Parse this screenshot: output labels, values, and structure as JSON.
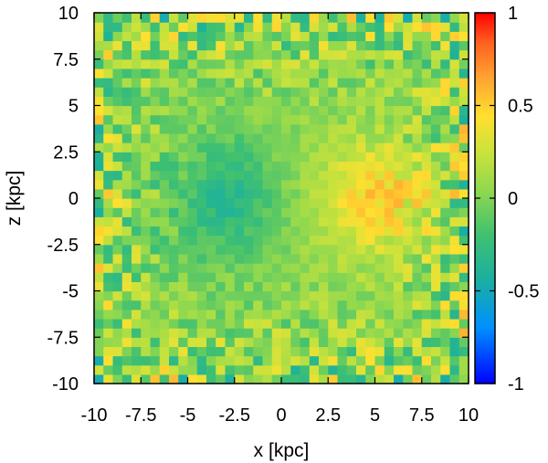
{
  "chart_data": {
    "type": "heatmap",
    "title": "",
    "xlabel": "x [kpc]",
    "ylabel": "z [kpc]",
    "xlim": [
      -10,
      10
    ],
    "ylim": [
      -10,
      10
    ],
    "xticks": [
      -10,
      -7.5,
      -5,
      -2.5,
      0,
      2.5,
      5,
      7.5,
      10
    ],
    "yticks": [
      -10,
      -7.5,
      -5,
      -2.5,
      0,
      2.5,
      5,
      7.5,
      10
    ],
    "xtick_labels": [
      "-10",
      "-7.5",
      "-5",
      "-2.5",
      "0",
      "2.5",
      "5",
      "7.5",
      "10"
    ],
    "ytick_labels": [
      "-10",
      "-7.5",
      "-5",
      "-2.5",
      "0",
      "2.5",
      "5",
      "7.5",
      "10"
    ],
    "colorbar": {
      "range": [
        -1,
        1
      ],
      "ticks": [
        -1,
        -0.5,
        0,
        0.5,
        1
      ],
      "tick_labels": [
        "-1",
        "-0.5",
        "0",
        "0.5",
        "1"
      ],
      "colormap": [
        "#0000ff",
        "#0090ff",
        "#1ab0a0",
        "#40c070",
        "#8fd84f",
        "#c8e23c",
        "#ffe030",
        "#ffa030",
        "#ff6020",
        "#ff0000"
      ]
    },
    "grid": false,
    "field_description": {
      "bins_per_axis": 40,
      "gradient": "negative values around x≈-3 (min ≈ -0.35), positive values around x≈+5 (max ≈ +0.45), near zero elsewhere with noisy scatter at the edges"
    }
  }
}
